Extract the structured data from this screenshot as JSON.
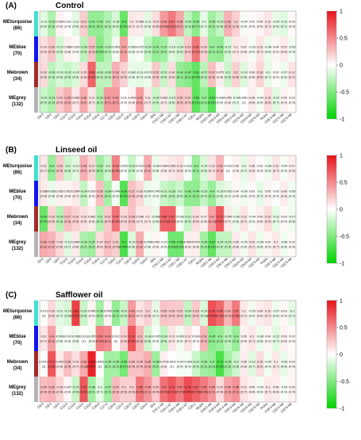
{
  "panels": [
    {
      "letter": "(A)",
      "title": "Control"
    },
    {
      "letter": "(B)",
      "title": "Linseed oil"
    },
    {
      "letter": "(C)",
      "title": "Safflower oil"
    }
  ],
  "colors": {
    "low": "#00d400",
    "mid": "#ffffff",
    "high": "#e8141c",
    "module_turquoise": "#40e0d0",
    "module_blue": "#1414ee",
    "module_brown": "#a52a2a",
    "module_grey": "#b4b4b4"
  },
  "chart_data": {
    "type": "heatmap",
    "modules": [
      {
        "label": "MEturquoise",
        "count": "(86)",
        "color": "turquoise"
      },
      {
        "label": "MEblue",
        "count": "(70)",
        "color": "blue"
      },
      {
        "label": "Mebrown",
        "count": "(34)",
        "color": "brown"
      },
      {
        "label": "MEgrey",
        "count": "(132)",
        "color": "grey"
      }
    ],
    "columns": [
      "C6:0",
      "C8:0",
      "C8:0",
      "C12:0",
      "C13:0",
      "C14:0",
      "C15:0",
      "C16:0",
      "C17:0",
      "C20:0",
      "C21:0",
      "C22:0",
      "C23:0",
      "C24:0",
      "SFA",
      "C14:1 N5",
      "C16:1 N7",
      "C18:1 N9",
      "C18:1 N7",
      "C20:1",
      "MUFA",
      "C18:2 N6",
      "C18:3 N3",
      "C20:4 N6",
      "C20:3 N3",
      "C22:6 N3",
      "C20:5 N3",
      "C22:5 N3",
      "PUFA",
      "C18:3 N6",
      "C22:4 N6",
      "C22:5 N6"
    ],
    "colorbar": {
      "ticks": [
        "1",
        "0.5",
        "0",
        "-0.5",
        "-1"
      ],
      "range": [
        -1,
        1
      ]
    },
    "panels": [
      {
        "name": "Control",
        "r": [
          [
            -0.11,
            -0.32,
            0.054,
            0.011,
            -0.11,
            0.21,
            -0.41,
            -0.42,
            -0.3,
            -0.16,
            -0.6,
            0.1,
            0.088,
            -0.11,
            0.14,
            0.43,
            0.57,
            0.38,
            -0.26,
            -0.45,
            -0.1,
            -0.36,
            -0.23,
            0.33,
            0.2,
            -0.04,
            0.02,
            0.05,
            0.11,
            -0.09,
            -0.12,
            0.03
          ],
          [
            0.14,
            0.24,
            -0.17,
            0.066,
            0.029,
            -0.26,
            0.25,
            -0.47,
            -0.29,
            -0.061,
            0.4,
            -0.065,
            -0.025,
            -0.24,
            -0.41,
            -0.37,
            -0.13,
            -0.18,
            0.23,
            0.58,
            0.19,
            -0.4,
            -0.42,
            -0.17,
            0.1,
            0.07,
            -0.03,
            0.12,
            -0.08,
            0.04,
            0.09,
            -0.05
          ],
          [
            0.16,
            -0.26,
            -0.16,
            -0.22,
            -0.15,
            0.15,
            0.66,
            -0.26,
            -0.26,
            0.33,
            0.2,
            -0.082,
            -0.11,
            -0.079,
            0.23,
            -0.21,
            0.14,
            -0.41,
            -0.47,
            -0.61,
            -0.27,
            0.27,
            0.075,
            -0.2,
            0.2,
            -0.13,
            0.06,
            0.18,
            -0.1,
            0.02,
            -0.07,
            0.12
          ],
          [
            -0.22,
            -0.31,
            0.22,
            0.33,
            0.096,
            0.36,
            0.11,
            -0.31,
            0.42,
            0.43,
            0.01,
            0.054,
            0.41,
            0.11,
            -0.22,
            0.093,
            -0.15,
            0.25,
            0.22,
            -0.63,
            -0.4,
            -0.64,
            -0.038,
            0.055,
            -0.09,
            0.0067,
            0.08,
            -0.04,
            0.15,
            -0.12,
            0.05,
            0.02
          ]
        ],
        "p": [
          [
            "(0.6)",
            "(0.3)",
            "(0.6)",
            "(0.4)",
            "(0.6)",
            "(0.1)",
            "(0.2)",
            "(0.2)",
            "(0.3)",
            "(0.6)",
            "(0.01)",
            "(0.7)",
            "(0.7)",
            "(0.6)",
            "(0.5)",
            "(0.09)",
            "(0.02)",
            "(0.2)",
            "(0.3)",
            "(0.07)",
            "(0.7)",
            "(0.2)",
            "(0.4)",
            "(0.2)",
            "(0.5)",
            "(0.9)",
            "(0.9)",
            "(0.8)",
            "(0.7)",
            "(0.8)",
            "(0.7)",
            "(0.9)"
          ],
          [
            "(0.6)",
            "(0.4)",
            "(0.5)",
            "(0.8)",
            "(0.9)",
            "(0.3)",
            "(0.3)",
            "(0.06)",
            "(0.3)",
            "(0.8)",
            "(0.1)",
            "(0.8)",
            "(0.9)",
            "(0.4)",
            "(0.1)",
            "(0.2)",
            "(0.6)",
            "(0.5)",
            "(0.4)",
            "(0.02)",
            "(0.5)",
            "(0.1)",
            "(0.1)",
            "(0.5)",
            "(0.7)",
            "(0.8)",
            "(0.9)",
            "(0.7)",
            "(0.8)",
            "(0.9)",
            "(0.8)",
            "(0.9)"
          ],
          [
            "(0.6)",
            "(0.3)",
            "(0.6)",
            "(0.4)",
            "(0.6)",
            "(0.6)",
            "(0.01)",
            "(0.3)",
            "(0.3)",
            "(0.2)",
            "(0.5)",
            "(0.8)",
            "(0.7)",
            "(0.8)",
            "(0.4)",
            "(0.4)",
            "(0.6)",
            "(0.1)",
            "(0.1)",
            "(0.05)",
            "(0.3)",
            "(0.3)",
            "(0.8)",
            "(0.5)",
            "(0.5)",
            "(0.6)",
            "(0.8)",
            "(0.5)",
            "(0.7)",
            "(0.9)",
            "(0.8)",
            "(0.7)"
          ],
          [
            "(0.4)",
            "(0.2)",
            "(0.4)",
            "(0.2)",
            "(0.7)",
            "(0.2)",
            "(0.7)",
            "(0.2)",
            "(0.1)",
            "(0.1)",
            "(0.9)",
            "(0.8)",
            "(0.1)",
            "(0.7)",
            "(0.4)",
            "(0.7)",
            "(0.6)",
            "(0.3)",
            "(0.4)",
            "(0.01)",
            "(0.1)",
            "(0.01)",
            "(0.9)",
            "(0.8)",
            "(0.7)",
            "(1)",
            "(0.8)",
            "(0.9)",
            "(0.6)",
            "(0.7)",
            "(0.9)",
            "(0.9)"
          ]
        ]
      },
      {
        "name": "Linseed oil",
        "r": [
          [
            0.11,
            -0.4,
            0.23,
            -0.2,
            -0.12,
            0.34,
            0.17,
            -0.37,
            -0.2,
            0.53,
            -0.025,
            -0.22,
            -0.037,
            0.35,
            -0.08,
            0.064,
            0.096,
            0.13,
            -0.031,
            -0.4,
            -0.14,
            0.12,
            0.31,
            -0.003,
            0.05,
            -0.1,
            0.08,
            0.02,
            -0.06,
            0.11,
            -0.04,
            0.07
          ],
          [
            0.088,
            -0.082,
            0.061,
            0.051,
            0.094,
            -0.24,
            0.026,
            0.28,
            -0.34,
            -0.048,
            -0.66,
            0.27,
            0.16,
            -0.087,
            -0.045,
            -0.21,
            -0.28,
            -0.2,
            -0.42,
            -0.44,
            -0.23,
            -0.4,
            -0.15,
            -0.092,
            0.04,
            -0.06,
            0.03,
            -0.1,
            0.05,
            -0.02,
            0.08,
            -0.05
          ],
          [
            -0.59,
            0.18,
            -0.29,
            0.27,
            0.19,
            0.13,
            0.082,
            -0.3,
            0.22,
            0.59,
            0.16,
            0.26,
            0.096,
            0.1,
            -0.088,
            0.66,
            0.67,
            -0.038,
            -0.21,
            0.14,
            0.07,
            0.4,
            0.71,
            0.094,
            -0.08,
            0.12,
            -0.04,
            0.06,
            0.15,
            -0.11,
            0.03,
            -0.07
          ],
          [
            0.36,
            0.32,
            0.16,
            -0.12,
            0.084,
            -0.33,
            -0.37,
            0.14,
            0.27,
            0.21,
            -0.7,
            -0.13,
            0.35,
            -0.056,
            0.043,
            -0.02,
            -0.56,
            -0.56,
            0.069,
            0.074,
            -0.35,
            -0.62,
            -0.24,
            -0.24,
            0.09,
            -0.05,
            0.12,
            -0.08,
            0.04,
            0.1,
            -0.06,
            0.02
          ]
        ],
        "p": [
          [
            "(0.7)",
            "(0.1)",
            "(0.4)",
            "(0.5)",
            "(0.7)",
            "(0.2)",
            "(0.5)",
            "(0.2)",
            "(0.5)",
            "(0.05)",
            "(0.9)",
            "(0.4)",
            "(0.9)",
            "(0.2)",
            "(0.8)",
            "(0.8)",
            "(0.7)",
            "(0.6)",
            "(0.9)",
            "(0.1)",
            "(0.6)",
            "(0.7)",
            "(0.3)",
            "(1)",
            "(0.9)",
            "(0.7)",
            "(0.8)",
            "(0.9)",
            "(0.8)",
            "(0.7)",
            "(0.9)",
            "(0.8)"
          ],
          [
            "(0.8)",
            "(0.8)",
            "(0.8)",
            "(0.9)",
            "(0.7)",
            "(0.4)",
            "(0.9)",
            "(0.3)",
            "(0.2)",
            "(0.9)",
            "(0.01)",
            "(0.3)",
            "(0.6)",
            "(0.7)",
            "(0.9)",
            "(0.5)",
            "(0.3)",
            "(0.5)",
            "(0.1)",
            "(0.1)",
            "(0.4)",
            "(0.1)",
            "(0.6)",
            "(0.7)",
            "(0.9)",
            "(0.8)",
            "(0.9)",
            "(0.7)",
            "(0.9)",
            "(0.9)",
            "(0.8)",
            "(0.9)"
          ],
          [
            "(0.02)",
            "(0.5)",
            "(0.3)",
            "(0.3)",
            "(0.5)",
            "(0.6)",
            "(0.8)",
            "(0.3)",
            "(0.4)",
            "(0.02)",
            "(0.6)",
            "(0.3)",
            "(0.7)",
            "(0.7)",
            "(0.8)",
            "(0.01)",
            "(0.01)",
            "(0.9)",
            "(0.4)",
            "(0.6)",
            "(0.8)",
            "(0.1)",
            "(0.004)",
            "(0.7)",
            "(0.8)",
            "(0.7)",
            "(0.9)",
            "(0.8)",
            "(0.6)",
            "(0.7)",
            "(0.9)",
            "(0.8)"
          ],
          [
            "(0.2)",
            "(0.2)",
            "(0.6)",
            "(0.7)",
            "(0.8)",
            "(0.2)",
            "(0.2)",
            "(0.6)",
            "(0.3)",
            "(0.5)",
            "(0.005)",
            "(0.6)",
            "(0.2)",
            "(0.8)",
            "(0.9)",
            "(0.9)",
            "(0.03)",
            "(0.03)",
            "(0.8)",
            "(0.8)",
            "(0.2)",
            "(0.01)",
            "(0.4)",
            "(0.4)",
            "(0.8)",
            "(0.9)",
            "(0.7)",
            "(0.8)",
            "(0.9)",
            "(0.7)",
            "(0.8)",
            "(0.9)"
          ]
        ]
      },
      {
        "name": "Safflower oil",
        "r": [
          [
            -0.013,
            0.16,
            -0.11,
            -0.16,
            0.81,
            -0.21,
            0.046,
            -0.35,
            0.046,
            -0.42,
            -0.22,
            0.43,
            0.12,
            0.2,
            -0.1,
            0.25,
            0.23,
            0.22,
            -0.24,
            0.23,
            -0.15,
            0.74,
            0.64,
            0.31,
            0.57,
            0.1,
            -0.05,
            0.08,
            0.12,
            -0.07,
            0.03,
            -0.1
          ],
          [
            0.11,
            0.4,
            -0.066,
            -0.027,
            -0.066,
            0.013,
            -0.057,
            0.53,
            0.49,
            0.012,
            0.19,
            0.72,
            0.3,
            -0.18,
            -0.035,
            -0.24,
            0.11,
            -0.054,
            0.12,
            0.024,
            0.31,
            -0.45,
            -0.4,
            -0.25,
            -0.4,
            0.05,
            0.1,
            -0.08,
            0.04,
            -0.12,
            0.06,
            0.02
          ],
          [
            0.0023,
            0.72,
            0.093,
            0.28,
            0.13,
            0.36,
            0.94,
            0.0062,
            -0.36,
            -0.36,
            -0.54,
            0.26,
            0.26,
            0.35,
            -0.38,
            0.071,
            0.0016,
            -0.04,
            -0.038,
            -0.21,
            -0.36,
            -0.4,
            -0.71,
            -0.36,
            -0.2,
            0.08,
            -0.12,
            0.15,
            -0.05,
            0.1,
            -0.09,
            0.04
          ],
          [
            0.28,
            0.32,
            0.18,
            0.037,
            -0.21,
            0.72,
            -0.35,
            -0.1,
            -0.37,
            0.29,
            0.2,
            0.2,
            0.58,
            0.44,
            0.23,
            0.6,
            0.71,
            0.55,
            0.76,
            0.67,
            0.56,
            0.44,
            0.15,
            0.39,
            0.46,
            0.12,
            0.06,
            -0.04,
            0.1,
            0.08,
            -0.03,
            0.05
          ]
        ],
        "p": [
          [
            "(1)",
            "(0.6)",
            "(0.7)",
            "(0.6)",
            "(0.003)",
            "(0.5)",
            "(0.9)",
            "(0.2)",
            "(0.9)",
            "(0.1)",
            "(0.5)",
            "(0.1)",
            "(0.7)",
            "(0.5)",
            "(0.7)",
            "(0.4)",
            "(0.4)",
            "(0.5)",
            "(0.4)",
            "(0.4)",
            "(0.6)",
            "(0.004)",
            "(0.02)",
            "(0.3)",
            "(0.06)",
            "(0.7)",
            "(0.9)",
            "(0.8)",
            "(0.7)",
            "(0.8)",
            "(0.9)",
            "(0.7)"
          ],
          [
            "(0.7)",
            "(0.2)",
            "(0.8)",
            "(0.9)",
            "(0.8)",
            "(1)",
            "(0.9)",
            "(0.08)",
            "(0.1)",
            "(1)",
            "(0.5)",
            "(0.01)",
            "(0.3)",
            "(0.6)",
            "(0.9)",
            "(0.4)",
            "(0.7)",
            "(0.9)",
            "(0.7)",
            "(0.9)",
            "(0.3)",
            "(0.1)",
            "(0.2)",
            "(0.4)",
            "(0.2)",
            "(0.9)",
            "(0.7)",
            "(0.8)",
            "(0.9)",
            "(0.7)",
            "(0.8)",
            "(0.9)"
          ],
          [
            "(1)",
            "(0.01)",
            "(0.8)",
            "(0.4)",
            "(0.7)",
            "(0.2)",
            "(0.0001)",
            "(1)",
            "(0.2)",
            "(0.2)",
            "(0.07)",
            "(0.4)",
            "(0.4)",
            "(0.3)",
            "(0.2)",
            "(0.8)",
            "(1)",
            "(0.9)",
            "(0.9)",
            "(0.5)",
            "(0.2)",
            "(0.2)",
            "(0.01)",
            "(0.2)",
            "(0.5)",
            "(0.8)",
            "(0.7)",
            "(0.6)",
            "(0.9)",
            "(0.7)",
            "(0.8)",
            "(0.9)"
          ],
          [
            "(0.4)",
            "(0.3)",
            "(0.6)",
            "(0.9)",
            "(0.5)",
            "(0.01)",
            "(0.2)",
            "(0.7)",
            "(0.2)",
            "(0.3)",
            "(0.5)",
            "(0.5)",
            "(0.05)",
            "(0.1)",
            "(0.4)",
            "(0.04)",
            "(0.01)",
            "(0.07)",
            "(0.004)",
            "(0.02)",
            "(0.06)",
            "(0.1)",
            "(0.6)",
            "(0.2)",
            "(0.1)",
            "(0.7)",
            "(0.8)",
            "(0.9)",
            "(0.7)",
            "(0.8)",
            "(0.9)",
            "(0.9)"
          ]
        ]
      }
    ]
  }
}
